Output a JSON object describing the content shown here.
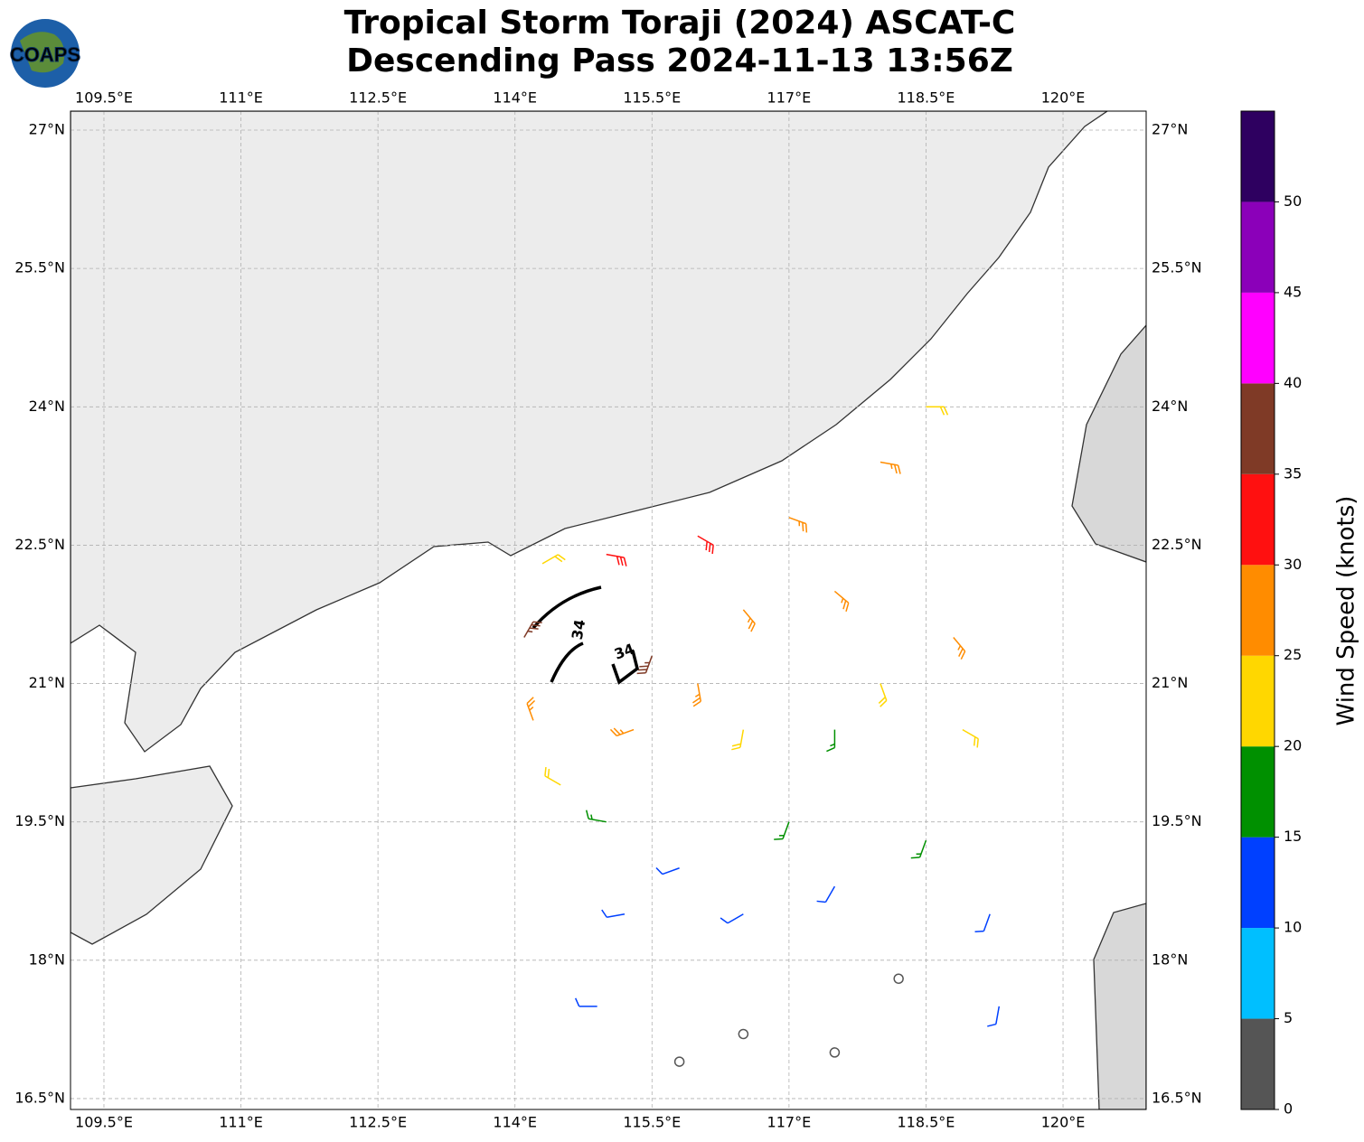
{
  "chart_data": {
    "type": "wind-barb-map",
    "title": "Tropical Storm Toraji (2024) ASCAT-C",
    "subtitle": "Descending Pass 2024-11-13 13:56Z",
    "logo": "COAPS",
    "xlim": [
      109.134,
      120.91
    ],
    "ylim": [
      16.382,
      27.206
    ],
    "xticks": [
      {
        "value": 109.5,
        "label": "109.5°E"
      },
      {
        "value": 111,
        "label": "111°E"
      },
      {
        "value": 112.5,
        "label": "112.5°E"
      },
      {
        "value": 114,
        "label": "114°E"
      },
      {
        "value": 115.5,
        "label": "115.5°E"
      },
      {
        "value": 117,
        "label": "117°E"
      },
      {
        "value": 118.5,
        "label": "118.5°E"
      },
      {
        "value": 120,
        "label": "120°E"
      }
    ],
    "yticks": [
      {
        "value": 16.5,
        "label": "16.5°N"
      },
      {
        "value": 18,
        "label": "18°N"
      },
      {
        "value": 19.5,
        "label": "19.5°N"
      },
      {
        "value": 21,
        "label": "21°N"
      },
      {
        "value": 22.5,
        "label": "22.5°N"
      },
      {
        "value": 24,
        "label": "24°N"
      },
      {
        "value": 25.5,
        "label": "25.5°N"
      },
      {
        "value": 27,
        "label": "27°N"
      }
    ],
    "grid": true,
    "colorbar": {
      "label": "Wind Speed (knots)",
      "lim": [
        0,
        55
      ],
      "ticks": [
        0,
        5,
        10,
        15,
        20,
        25,
        30,
        35,
        40,
        45,
        50
      ],
      "colors": [
        "#555555",
        "#00bfff",
        "#0040ff",
        "#009000",
        "#ffd700",
        "#ff8c00",
        "#ff1010",
        "#7f3a26",
        "#ff00ff",
        "#8b00b9",
        "#2e0060"
      ]
    },
    "annotations": [
      "34",
      "34"
    ],
    "barbs": {
      "lon": [
        115.0,
        116.0,
        117.0,
        118.0,
        118.5,
        114.3,
        114.1,
        114.2,
        114.5,
        115.0,
        115.3,
        115.5,
        116.0,
        116.5,
        117.0,
        117.5,
        118.0,
        118.8,
        118.9,
        116.5,
        117.5,
        115.8,
        116.5,
        117.5,
        118.5,
        119.2,
        119.3,
        115.2,
        114.9,
        116.5,
        117.5,
        118.2,
        115.8
      ],
      "lat": [
        22.4,
        22.6,
        22.8,
        23.4,
        24.0,
        22.3,
        21.5,
        20.6,
        19.9,
        19.5,
        20.5,
        21.3,
        21.0,
        20.5,
        19.5,
        20.5,
        21.0,
        21.5,
        20.5,
        21.8,
        22.0,
        19.0,
        18.5,
        18.8,
        19.3,
        18.5,
        17.5,
        18.5,
        17.5,
        17.2,
        17.0,
        17.8,
        16.9
      ],
      "speed": [
        30,
        30,
        25,
        25,
        20,
        20,
        35,
        25,
        20,
        15,
        25,
        35,
        25,
        20,
        15,
        15,
        20,
        25,
        20,
        25,
        25,
        10,
        10,
        10,
        15,
        10,
        10,
        10,
        10,
        2,
        3,
        4,
        2
      ],
      "direction": [
        100,
        120,
        110,
        100,
        90,
        60,
        30,
        340,
        300,
        280,
        250,
        200,
        170,
        190,
        200,
        180,
        160,
        140,
        120,
        140,
        130,
        250,
        240,
        210,
        200,
        200,
        190,
        260,
        270,
        200,
        220,
        200,
        180
      ]
    }
  }
}
